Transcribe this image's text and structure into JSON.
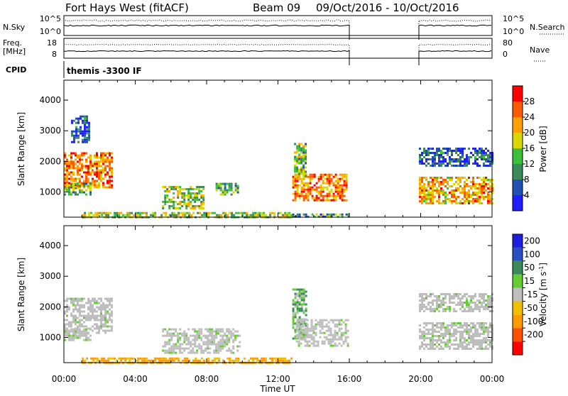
{
  "header": {
    "station": "Fort Hays West (fitACF)",
    "beam": "Beam 09",
    "date_range": "09/Oct/2016 - 10/Oct/2016"
  },
  "top_panels": {
    "nsky": {
      "label": "N.Sky",
      "ticks": [
        "10^5",
        "10^0"
      ]
    },
    "nsearch": {
      "label": "N.Search",
      "ticks": [
        "10^5",
        "10^0"
      ]
    },
    "freq": {
      "label": "Freq.",
      "unit": "[MHz]",
      "ticks": [
        "18",
        "8"
      ]
    },
    "nave": {
      "label": "Nave",
      "ticks": [
        "80",
        "0"
      ]
    },
    "cpid": {
      "label": "CPID",
      "value": "themis -3300 IF"
    }
  },
  "x_axis": {
    "label": "Time UT",
    "ticks": [
      "00:00",
      "04:00",
      "08:00",
      "12:00",
      "16:00",
      "20:00",
      "00:00"
    ],
    "range_hours": [
      0,
      24
    ]
  },
  "colors": {
    "power_scale": [
      "#1e1eff",
      "#2050b0",
      "#3a8a5a",
      "#3cc03c",
      "#d8d800",
      "#ffa000",
      "#ff5a00",
      "#ff0000"
    ],
    "velocity_scale": [
      "#1e1ee0",
      "#2850c0",
      "#3a8a5a",
      "#66cc33",
      "#bebebe",
      "#f0c000",
      "#ff9a00",
      "#ff5000",
      "#ff0000"
    ],
    "ground_scatter": "#bebebe"
  },
  "chart_data": [
    {
      "type": "heatmap",
      "title": "",
      "xlabel": "Time UT",
      "ylabel": "Slant Range [km]",
      "ylim": [
        180,
        4650
      ],
      "yticks": [
        1000,
        2000,
        3000,
        4000
      ],
      "colorbar": {
        "label": "Power [dB]",
        "ticks": [
          4,
          8,
          12,
          16,
          20,
          24,
          28
        ],
        "range": [
          0,
          32
        ]
      },
      "data_gaps_hours": [
        [
          16,
          19.9
        ]
      ],
      "echo_regions": [
        {
          "t": [
            0.0,
            2.7
          ],
          "r": [
            1150,
            2300
          ],
          "power": 24
        },
        {
          "t": [
            0.0,
            1.5
          ],
          "r": [
            900,
            1300
          ],
          "power": 14
        },
        {
          "t": [
            0.4,
            1.4
          ],
          "r": [
            2600,
            3500
          ],
          "power": 6
        },
        {
          "t": [
            1.0,
            12.8
          ],
          "r": [
            180,
            350
          ],
          "power": 16
        },
        {
          "t": [
            5.5,
            7.8
          ],
          "r": [
            500,
            1200
          ],
          "power": 15
        },
        {
          "t": [
            8.5,
            9.8
          ],
          "r": [
            900,
            1300
          ],
          "power": 12
        },
        {
          "t": [
            12.8,
            15.9
          ],
          "r": [
            700,
            1600
          ],
          "power": 24
        },
        {
          "t": [
            12.9,
            13.6
          ],
          "r": [
            1500,
            2600
          ],
          "power": 14
        },
        {
          "t": [
            12.8,
            16.0
          ],
          "r": [
            180,
            300
          ],
          "power": 10
        },
        {
          "t": [
            19.9,
            24.0
          ],
          "r": [
            650,
            1500
          ],
          "power": 22
        },
        {
          "t": [
            19.9,
            24.0
          ],
          "r": [
            1850,
            2450
          ],
          "power": 6
        }
      ]
    },
    {
      "type": "heatmap",
      "title": "",
      "xlabel": "Time UT",
      "ylabel": "Slant Range [km]",
      "ylim": [
        180,
        4650
      ],
      "yticks": [
        1000,
        2000,
        3000,
        4000
      ],
      "colorbar": {
        "label": "Velocity [m s^-1]",
        "ticks": [
          200,
          100,
          50,
          15,
          -15,
          -50,
          -100,
          -200
        ],
        "range": [
          -250,
          250
        ]
      },
      "data_gaps_hours": [
        [
          16,
          19.9
        ]
      ],
      "echo_regions": [
        {
          "t": [
            0.0,
            2.7
          ],
          "r": [
            1150,
            2300
          ],
          "velocity": 0,
          "ground_scatter": true
        },
        {
          "t": [
            0.0,
            1.5
          ],
          "r": [
            900,
            1300
          ],
          "velocity": 0,
          "ground_scatter": true
        },
        {
          "t": [
            1.0,
            12.8
          ],
          "r": [
            180,
            350
          ],
          "velocity": -60
        },
        {
          "t": [
            5.5,
            9.8
          ],
          "r": [
            500,
            1300
          ],
          "velocity": 0,
          "ground_scatter": true
        },
        {
          "t": [
            12.8,
            13.6
          ],
          "r": [
            1000,
            2600
          ],
          "velocity": 40
        },
        {
          "t": [
            13.0,
            15.9
          ],
          "r": [
            700,
            1600
          ],
          "velocity": 0,
          "ground_scatter": true
        },
        {
          "t": [
            19.9,
            24.0
          ],
          "r": [
            650,
            1500
          ],
          "velocity": 0,
          "ground_scatter": true
        },
        {
          "t": [
            19.9,
            24.0
          ],
          "r": [
            1850,
            2450
          ],
          "velocity": 0,
          "ground_scatter": true
        }
      ]
    }
  ]
}
